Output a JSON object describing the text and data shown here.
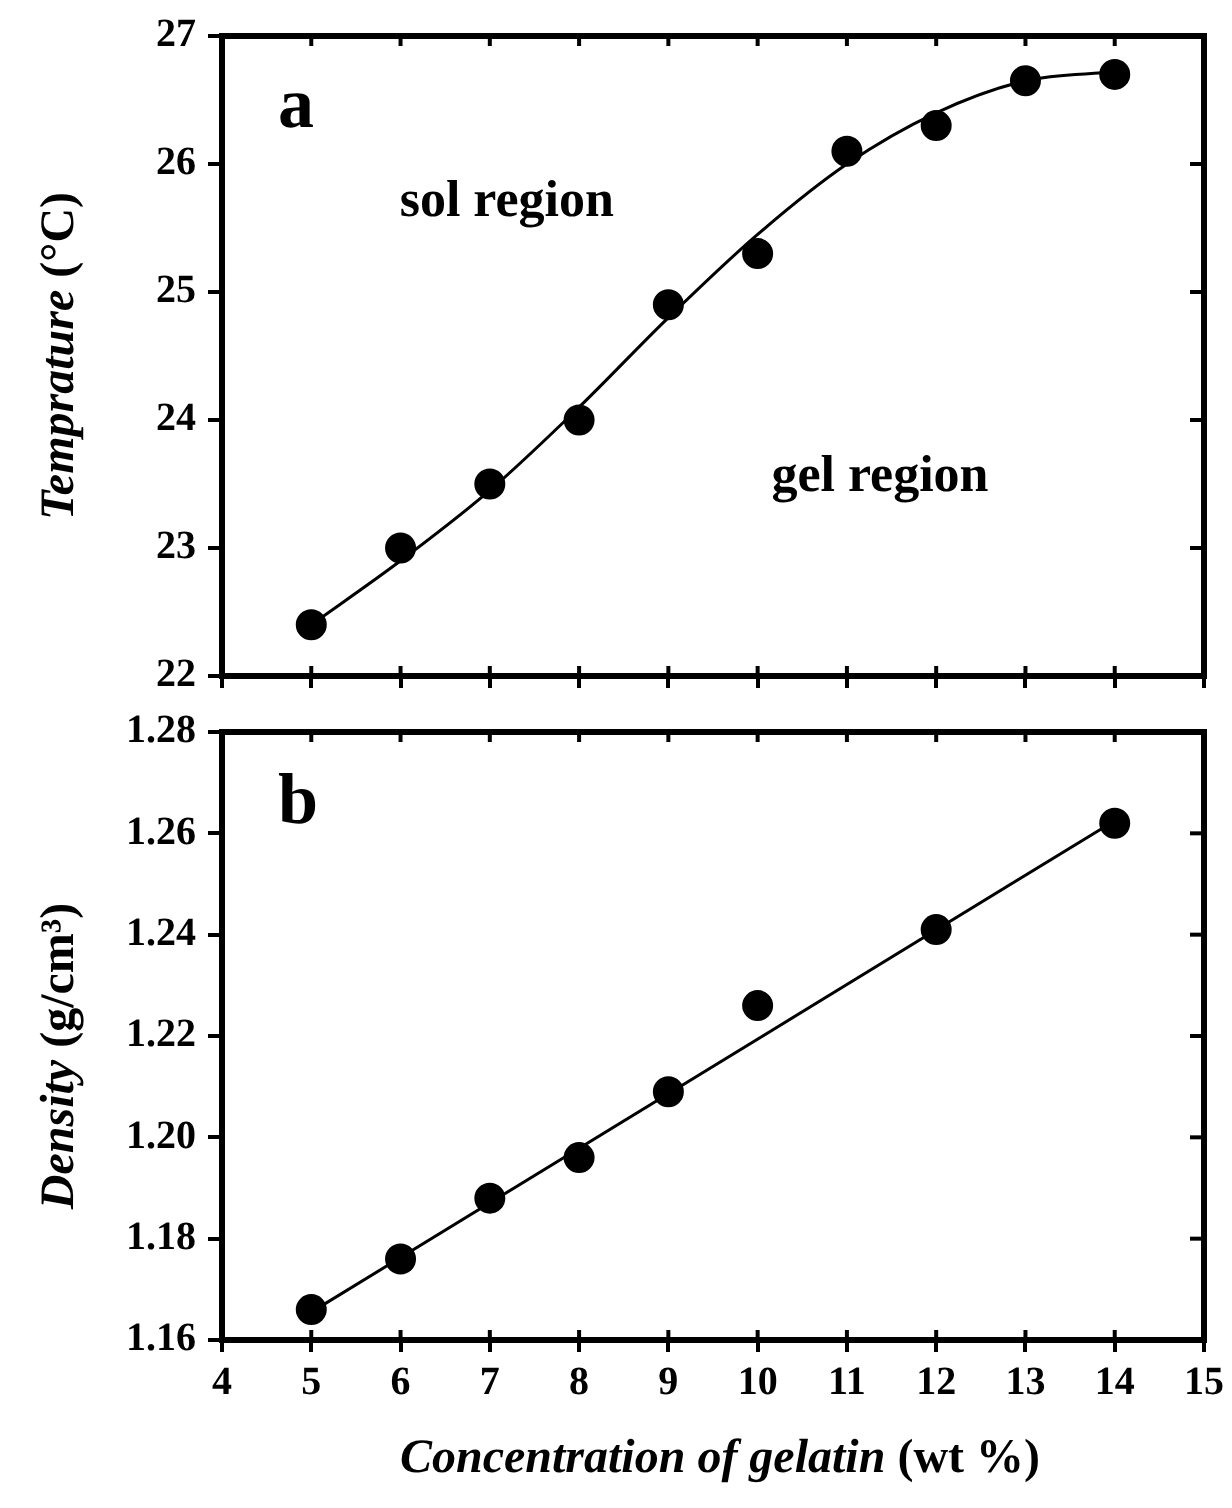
{
  "chart_data": [
    {
      "type": "scatter",
      "title": "a",
      "ylabel": "Temprature (°C)",
      "xlim": [
        4,
        15
      ],
      "xticks": [
        4,
        5,
        6,
        7,
        8,
        9,
        10,
        11,
        12,
        13,
        14,
        15
      ],
      "ylim": [
        22,
        27
      ],
      "yticks": [
        22,
        23,
        24,
        25,
        26,
        27
      ],
      "tick_labels": "y",
      "grid": false,
      "legend": false,
      "annotations": [
        "sol region",
        "gel region"
      ],
      "series": [
        {
          "type": "scatter",
          "color": "#000000",
          "marker": "circle",
          "x": [
            5,
            6,
            7,
            8,
            9,
            10,
            11,
            12,
            13,
            14
          ],
          "values": [
            22.4,
            23.0,
            23.5,
            24.0,
            24.9,
            25.3,
            26.1,
            26.3,
            26.65,
            26.7
          ]
        },
        {
          "type": "line",
          "color": "#000000",
          "marker": "none",
          "line_style": "solid",
          "x": [
            5,
            6,
            7,
            8,
            9,
            10,
            11,
            12,
            13,
            14
          ],
          "values": [
            22.4,
            22.9,
            23.45,
            24.1,
            24.8,
            25.45,
            26.0,
            26.4,
            26.65,
            26.72
          ]
        }
      ]
    },
    {
      "type": "scatter",
      "title": "b",
      "xlabel": "Concentration of gelatin (wt %)",
      "ylabel": "Density (g/cm³)",
      "xlim": [
        4,
        15
      ],
      "xticks": [
        4,
        5,
        6,
        7,
        8,
        9,
        10,
        11,
        12,
        13,
        14,
        15
      ],
      "ylim": [
        1.16,
        1.28
      ],
      "yticks": [
        1.16,
        1.18,
        {
          "value": 1.2,
          "label": "1.20"
        },
        1.22,
        1.24,
        1.26,
        1.28
      ],
      "grid": false,
      "legend": false,
      "series": [
        {
          "type": "scatter",
          "color": "#000000",
          "marker": "circle",
          "x": [
            5,
            6,
            7,
            8,
            9,
            10,
            12,
            14
          ],
          "values": [
            1.166,
            1.176,
            1.188,
            1.196,
            1.209,
            1.226,
            1.241,
            1.262
          ]
        },
        {
          "type": "line",
          "color": "#000000",
          "marker": "none",
          "line_style": "solid",
          "x": [
            5,
            14
          ],
          "values": [
            1.1655,
            1.2625
          ]
        }
      ]
    }
  ]
}
